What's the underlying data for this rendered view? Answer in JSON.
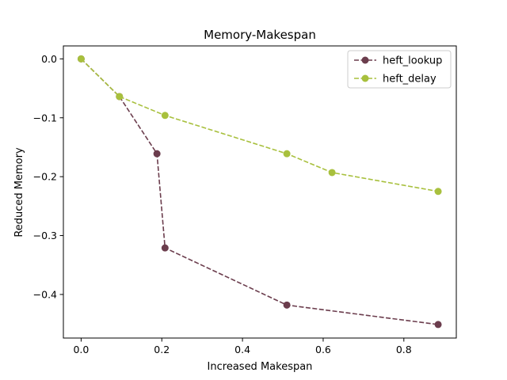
{
  "chart_data": {
    "type": "line",
    "title": "Memory-Makespan",
    "xlabel": "Increased Makespan",
    "ylabel": "Reduced Memory",
    "xlim": [
      -0.044,
      0.93
    ],
    "ylim": [
      -0.474,
      0.022
    ],
    "xticks": [
      0.0,
      0.2,
      0.4,
      0.6,
      0.8
    ],
    "xtick_labels": [
      "0.0",
      "0.2",
      "0.4",
      "0.6",
      "0.8"
    ],
    "yticks": [
      0.0,
      -0.1,
      -0.2,
      -0.3,
      -0.4
    ],
    "ytick_labels": [
      "0.0",
      "−0.1",
      "−0.2",
      "−0.3",
      "−0.4"
    ],
    "grid": false,
    "legend_position": "top-right",
    "series": [
      {
        "name": "heft_lookup",
        "color": "#6b3d4d",
        "line_style": "dashed",
        "marker": "circle",
        "x": [
          0.0,
          0.095,
          0.188,
          0.208,
          0.51,
          0.885
        ],
        "y": [
          0.0,
          -0.064,
          -0.161,
          -0.321,
          -0.418,
          -0.451
        ]
      },
      {
        "name": "heft_delay",
        "color": "#a8c03d",
        "line_style": "dashed",
        "marker": "circle",
        "x": [
          0.0,
          0.095,
          0.208,
          0.51,
          0.622,
          0.885
        ],
        "y": [
          0.0,
          -0.064,
          -0.096,
          -0.161,
          -0.193,
          -0.225
        ]
      }
    ]
  }
}
